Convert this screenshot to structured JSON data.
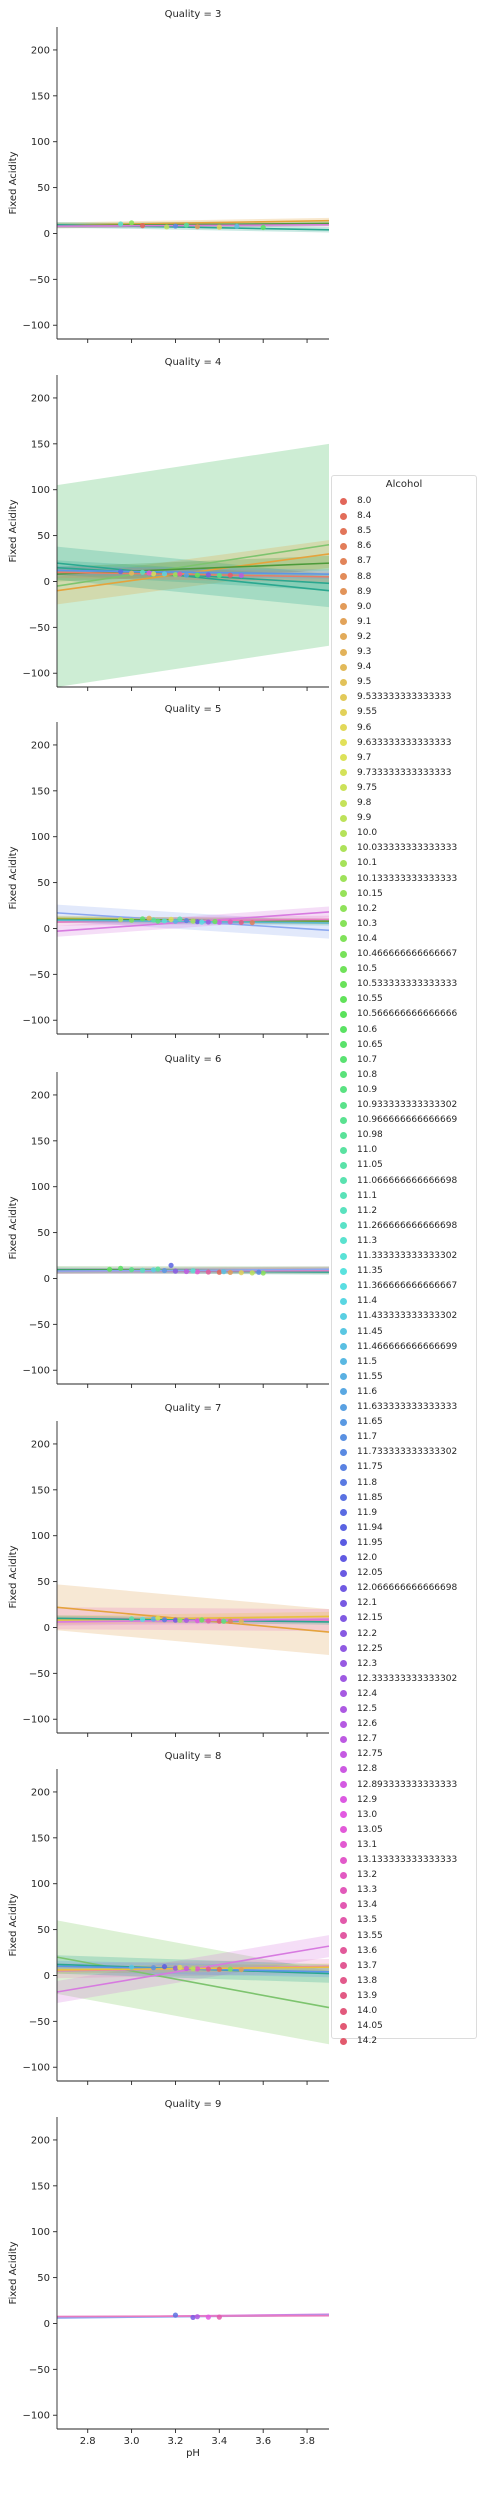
{
  "chart_data": {
    "type": "scatter",
    "facet_titles": [
      "Quality = 3",
      "Quality = 4",
      "Quality = 5",
      "Quality = 6",
      "Quality = 7",
      "Quality = 8",
      "Quality = 9"
    ],
    "xlabel": "pH",
    "ylabel": "Fixed Acidity",
    "xlim": [
      2.66,
      3.9
    ],
    "ylim": [
      -115,
      225
    ],
    "x_ticks": [
      2.8,
      3.0,
      3.2,
      3.4,
      3.6,
      3.8
    ],
    "y_ticks": [
      -100,
      -50,
      0,
      50,
      100,
      150,
      200
    ],
    "x_tick_labels": [
      "2.8",
      "3.0",
      "3.2",
      "3.4",
      "3.6",
      "3.8"
    ],
    "y_tick_labels": [
      "−100",
      "−50",
      "0",
      "50",
      "100",
      "150",
      "200"
    ],
    "legend": {
      "title": "Alcohol",
      "placement": "right",
      "entries": [
        "8.0",
        "8.4",
        "8.5",
        "8.6",
        "8.7",
        "8.8",
        "8.9",
        "9.0",
        "9.1",
        "9.2",
        "9.3",
        "9.4",
        "9.5",
        "9.533333333333333",
        "9.55",
        "9.6",
        "9.633333333333333",
        "9.7",
        "9.733333333333333",
        "9.75",
        "9.8",
        "9.9",
        "10.0",
        "10.033333333333333",
        "10.1",
        "10.133333333333333",
        "10.15",
        "10.2",
        "10.3",
        "10.4",
        "10.466666666666667",
        "10.5",
        "10.533333333333333",
        "10.55",
        "10.566666666666666",
        "10.6",
        "10.65",
        "10.7",
        "10.8",
        "10.9",
        "10.933333333333302",
        "10.966666666666669",
        "10.98",
        "11.0",
        "11.05",
        "11.066666666666698",
        "11.1",
        "11.2",
        "11.266666666666698",
        "11.3",
        "11.333333333333302",
        "11.35",
        "11.366666666666667",
        "11.4",
        "11.433333333333302",
        "11.45",
        "11.466666666666699",
        "11.5",
        "11.55",
        "11.6",
        "11.633333333333333",
        "11.65",
        "11.7",
        "11.733333333333302",
        "11.75",
        "11.8",
        "11.85",
        "11.9",
        "11.94",
        "11.95",
        "12.0",
        "12.05",
        "12.066666666666698",
        "12.1",
        "12.15",
        "12.2",
        "12.25",
        "12.3",
        "12.333333333333302",
        "12.4",
        "12.5",
        "12.6",
        "12.7",
        "12.75",
        "12.8",
        "12.893333333333333",
        "12.9",
        "13.0",
        "13.05",
        "13.1",
        "13.133333333333333",
        "13.2",
        "13.3",
        "13.4",
        "13.5",
        "13.55",
        "13.6",
        "13.7",
        "13.8",
        "13.9",
        "14.0",
        "14.05",
        "14.2"
      ]
    },
    "panels": [
      {
        "quality": 3,
        "points": [
          [
            3.05,
            8.5
          ],
          [
            3.3,
            7.4
          ],
          [
            3.4,
            6.9
          ],
          [
            3.16,
            7.1
          ],
          [
            3.0,
            11.6
          ],
          [
            3.6,
            6.5
          ],
          [
            3.25,
            9.0
          ],
          [
            2.95,
            10.4
          ],
          [
            3.48,
            7.8
          ],
          [
            3.2,
            8.1
          ]
        ],
        "fits": [
          {
            "color": "#e5a33c",
            "y0": 9.0,
            "y1": 14.0,
            "band": 3
          },
          {
            "color": "#4c9a3a",
            "y0": 8.5,
            "y1": 11.0,
            "band": 3
          },
          {
            "color": "#2aa78f",
            "y0": 9.5,
            "y1": 4.0,
            "band": 3
          },
          {
            "color": "#d97bd9",
            "y0": 8.0,
            "y1": 9.5,
            "band": 2
          }
        ]
      },
      {
        "quality": 4,
        "points": [
          [
            3.0,
            9.0
          ],
          [
            3.1,
            8.4
          ],
          [
            3.2,
            7.5
          ],
          [
            3.3,
            7.0
          ],
          [
            3.4,
            6.6
          ],
          [
            3.05,
            10.0
          ],
          [
            3.15,
            8.2
          ],
          [
            3.25,
            6.9
          ],
          [
            2.95,
            10.7
          ],
          [
            3.35,
            7.2
          ],
          [
            3.5,
            6.4
          ],
          [
            3.08,
            9.3
          ],
          [
            3.22,
            8.1
          ],
          [
            3.45,
            6.8
          ]
        ],
        "fits": [
          {
            "color": "#7dc46e",
            "y0": -5.0,
            "y1": 40.0,
            "band": 110,
            "bandColor": "#c8ebcf"
          },
          {
            "color": "#e5a33c",
            "y0": -10.0,
            "y1": 30.0,
            "band": 15
          },
          {
            "color": "#2aa78f",
            "y0": 20.0,
            "y1": -10.0,
            "band": 18
          },
          {
            "color": "#2aa78f",
            "y0": 15.0,
            "y1": -2.0,
            "band": 8
          },
          {
            "color": "#4c9a3a",
            "y0": 8.0,
            "y1": 20.0,
            "band": 8
          },
          {
            "color": "#e67e67",
            "y0": 10.0,
            "y1": 5.0,
            "band": 6
          },
          {
            "color": "#5b95e8",
            "y0": 12.0,
            "y1": 8.0,
            "band": 5
          }
        ]
      },
      {
        "quality": 5,
        "points": [
          [
            2.95,
            9.8
          ],
          [
            3.0,
            8.9
          ],
          [
            3.05,
            10.5
          ],
          [
            3.1,
            9.2
          ],
          [
            3.15,
            8.3
          ],
          [
            3.2,
            7.8
          ],
          [
            3.25,
            8.6
          ],
          [
            3.3,
            7.4
          ],
          [
            3.35,
            7.0
          ],
          [
            3.4,
            6.8
          ],
          [
            3.45,
            7.2
          ],
          [
            3.5,
            6.6
          ],
          [
            3.55,
            6.4
          ],
          [
            3.08,
            11.2
          ],
          [
            3.18,
            9.9
          ],
          [
            3.28,
            8.0
          ],
          [
            3.38,
            7.6
          ],
          [
            3.12,
            7.9
          ],
          [
            3.22,
            10.4
          ],
          [
            3.32,
            6.9
          ]
        ],
        "fits": [
          {
            "color": "#8ba7f0",
            "y0": 17.0,
            "y1": -2.0,
            "band": 9
          },
          {
            "color": "#e9c33c",
            "y0": 11.0,
            "y1": 7.0,
            "band": 3
          },
          {
            "color": "#4c9a3a",
            "y0": 10.0,
            "y1": 8.0,
            "band": 3
          },
          {
            "color": "#d77ae0",
            "y0": -3.0,
            "y1": 18.0,
            "band": 6
          },
          {
            "color": "#e87ac0",
            "y0": 7.0,
            "y1": 10.0,
            "band": 4
          },
          {
            "color": "#5bb8d0",
            "y0": 9.0,
            "y1": 6.0,
            "band": 3
          }
        ]
      },
      {
        "quality": 6,
        "points": [
          [
            2.9,
            10.0
          ],
          [
            3.0,
            9.6
          ],
          [
            3.05,
            8.9
          ],
          [
            3.1,
            9.4
          ],
          [
            3.15,
            8.6
          ],
          [
            3.18,
            14.3
          ],
          [
            3.2,
            8.0
          ],
          [
            3.25,
            7.6
          ],
          [
            3.3,
            7.3
          ],
          [
            3.35,
            7.0
          ],
          [
            3.4,
            6.8
          ],
          [
            3.45,
            6.6
          ],
          [
            3.5,
            6.3
          ],
          [
            3.55,
            6.1
          ],
          [
            3.6,
            5.9
          ],
          [
            2.95,
            11.0
          ],
          [
            3.12,
            10.2
          ],
          [
            3.28,
            8.4
          ],
          [
            3.42,
            7.4
          ],
          [
            3.58,
            6.8
          ]
        ],
        "fits": [
          {
            "color": "#4c9a3a",
            "y0": 9.5,
            "y1": 9.0,
            "band": 4
          },
          {
            "color": "#e5a33c",
            "y0": 8.0,
            "y1": 10.0,
            "band": 3
          },
          {
            "color": "#2aa78f",
            "y0": 9.0,
            "y1": 7.0,
            "band": 3
          },
          {
            "color": "#e87ac0",
            "y0": 8.0,
            "y1": 8.5,
            "band": 3
          },
          {
            "color": "#8ba7f0",
            "y0": 8.0,
            "y1": 10.0,
            "band": 3
          }
        ]
      },
      {
        "quality": 7,
        "points": [
          [
            3.0,
            9.5
          ],
          [
            3.05,
            8.8
          ],
          [
            3.1,
            9.2
          ],
          [
            3.15,
            8.4
          ],
          [
            3.2,
            8.0
          ],
          [
            3.25,
            7.8
          ],
          [
            3.3,
            7.4
          ],
          [
            3.35,
            7.2
          ],
          [
            3.4,
            6.9
          ],
          [
            3.45,
            6.7
          ],
          [
            3.5,
            6.5
          ],
          [
            3.12,
            10.1
          ],
          [
            3.22,
            7.9
          ],
          [
            3.32,
            8.3
          ],
          [
            3.42,
            6.8
          ]
        ],
        "fits": [
          {
            "color": "#e5a33c",
            "y0": 22.0,
            "y1": -5.0,
            "band": 25,
            "bandColor": "#f6e6cf"
          },
          {
            "color": "#e87ac0",
            "y0": 10.0,
            "y1": 8.0,
            "band": 12
          },
          {
            "color": "#e9c33c",
            "y0": 8.0,
            "y1": 12.0,
            "band": 5
          },
          {
            "color": "#2aa78f",
            "y0": 10.0,
            "y1": 6.0,
            "band": 3
          },
          {
            "color": "#d77ae0",
            "y0": 6.0,
            "y1": 9.0,
            "band": 4
          }
        ]
      },
      {
        "quality": 8,
        "points": [
          [
            3.0,
            9.0
          ],
          [
            3.1,
            8.5
          ],
          [
            3.15,
            9.6
          ],
          [
            3.2,
            8.0
          ],
          [
            3.25,
            7.6
          ],
          [
            3.3,
            7.2
          ],
          [
            3.35,
            7.0
          ],
          [
            3.4,
            6.8
          ],
          [
            3.5,
            6.4
          ],
          [
            3.22,
            8.8
          ],
          [
            3.28,
            7.4
          ],
          [
            3.45,
            6.9
          ]
        ],
        "fits": [
          {
            "color": "#7dc46e",
            "y0": 20.0,
            "y1": -35.0,
            "band": 40,
            "bandColor": "#d9efd0"
          },
          {
            "color": "#d77ae0",
            "y0": -18.0,
            "y1": 32.0,
            "band": 12
          },
          {
            "color": "#e87ac0",
            "y0": 5.0,
            "y1": 10.0,
            "band": 8
          },
          {
            "color": "#2aa78f",
            "y0": 12.0,
            "y1": 2.0,
            "band": 10
          },
          {
            "color": "#5b95e8",
            "y0": 10.0,
            "y1": 4.0,
            "band": 6
          },
          {
            "color": "#e9c33c",
            "y0": 6.0,
            "y1": 9.0,
            "band": 4
          }
        ]
      },
      {
        "quality": 9,
        "points": [
          [
            3.2,
            9.1
          ],
          [
            3.28,
            6.6
          ],
          [
            3.3,
            7.4
          ],
          [
            3.35,
            6.9
          ],
          [
            3.4,
            6.9
          ]
        ],
        "fits": [
          {
            "color": "#d77ae0",
            "y0": 6.5,
            "y1": 10.0,
            "band": 1
          },
          {
            "color": "#8ba7f0",
            "y0": 6.0,
            "y1": 9.0,
            "band": 1
          },
          {
            "color": "#e87ac0",
            "y0": 7.5,
            "y1": 8.5,
            "band": 1
          }
        ]
      }
    ]
  }
}
